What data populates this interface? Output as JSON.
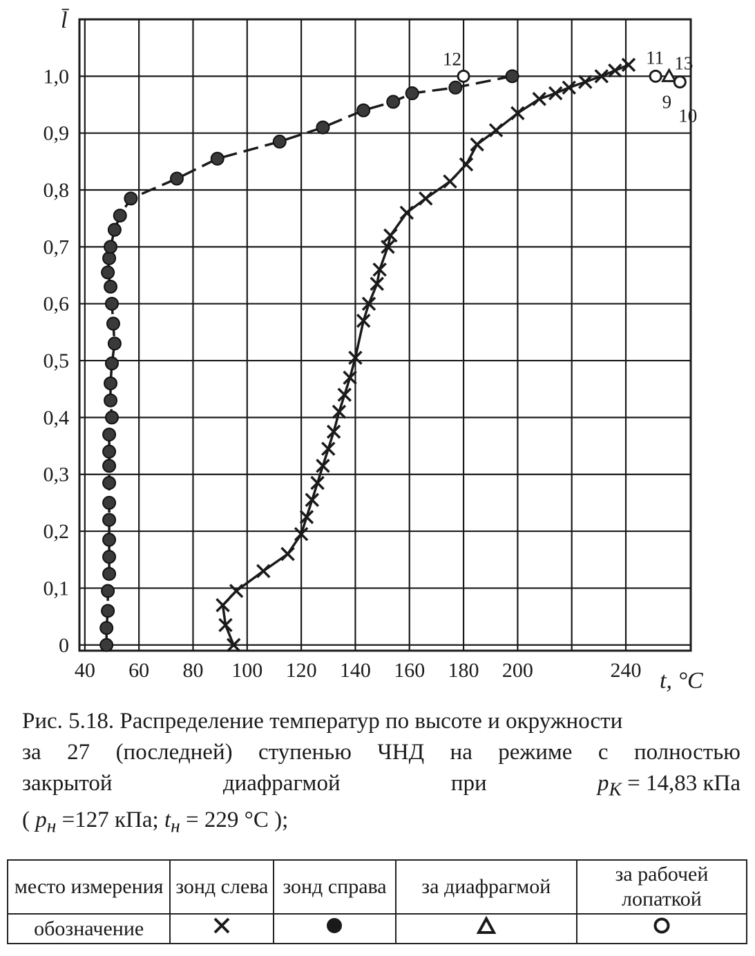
{
  "chart_data": {
    "type": "scatter",
    "xlabel": "t, °C",
    "ylabel": "l̄",
    "xlim": [
      38,
      264
    ],
    "ylim": [
      -0.01,
      1.1
    ],
    "x_ticks": [
      40,
      60,
      80,
      100,
      120,
      140,
      160,
      180,
      200,
      240
    ],
    "x_tick_labels": [
      "40",
      "60",
      "80",
      "100",
      "120",
      "140",
      "160",
      "180",
      "200",
      "240"
    ],
    "y_ticks": [
      0,
      0.1,
      0.2,
      0.3,
      0.4,
      0.5,
      0.6,
      0.7,
      0.8,
      0.9,
      1.0
    ],
    "y_tick_labels": [
      "0",
      "0,1",
      "0,2",
      "0,3",
      "0,4",
      "0,5",
      "0,6",
      "0,7",
      "0,8",
      "0,9",
      "1,0"
    ],
    "grid": true,
    "series": [
      {
        "name": "зонд слева",
        "marker": "cross",
        "line": "solid",
        "points": [
          [
            95,
            0.0
          ],
          [
            92,
            0.035
          ],
          [
            91,
            0.07
          ],
          [
            96,
            0.095
          ],
          [
            106,
            0.13
          ],
          [
            115,
            0.16
          ],
          [
            120,
            0.195
          ],
          [
            122,
            0.225
          ],
          [
            124,
            0.255
          ],
          [
            126,
            0.285
          ],
          [
            128,
            0.315
          ],
          [
            130,
            0.345
          ],
          [
            132,
            0.375
          ],
          [
            134,
            0.41
          ],
          [
            136,
            0.44
          ],
          [
            138,
            0.47
          ],
          [
            140,
            0.505
          ],
          [
            143,
            0.57
          ],
          [
            145,
            0.6
          ],
          [
            148,
            0.635
          ],
          [
            149,
            0.66
          ],
          [
            152,
            0.7
          ],
          [
            153,
            0.72
          ],
          [
            159,
            0.76
          ],
          [
            166,
            0.785
          ],
          [
            175,
            0.815
          ],
          [
            181,
            0.845
          ],
          [
            185,
            0.88
          ],
          [
            192,
            0.905
          ],
          [
            200,
            0.935
          ],
          [
            208,
            0.96
          ],
          [
            214,
            0.97
          ],
          [
            219,
            0.98
          ],
          [
            225,
            0.99
          ],
          [
            231,
            1.0
          ],
          [
            236,
            1.01
          ],
          [
            241,
            1.02
          ]
        ]
      },
      {
        "name": "зонд справа",
        "marker": "dot",
        "line": "dashed",
        "points": [
          [
            48,
            0.0
          ],
          [
            48,
            0.03
          ],
          [
            48.5,
            0.06
          ],
          [
            48.5,
            0.095
          ],
          [
            49,
            0.125
          ],
          [
            49,
            0.155
          ],
          [
            49,
            0.185
          ],
          [
            49,
            0.22
          ],
          [
            49,
            0.25
          ],
          [
            49,
            0.285
          ],
          [
            49,
            0.315
          ],
          [
            49,
            0.34
          ],
          [
            49,
            0.37
          ],
          [
            50,
            0.4
          ],
          [
            49.5,
            0.43
          ],
          [
            49.5,
            0.46
          ],
          [
            50,
            0.495
          ],
          [
            51,
            0.53
          ],
          [
            50.5,
            0.565
          ],
          [
            50,
            0.6
          ],
          [
            49.5,
            0.63
          ],
          [
            48.5,
            0.655
          ],
          [
            49,
            0.68
          ],
          [
            49.5,
            0.7
          ],
          [
            51,
            0.73
          ],
          [
            53,
            0.755
          ],
          [
            57,
            0.785
          ],
          [
            74,
            0.82
          ],
          [
            89,
            0.855
          ],
          [
            112,
            0.885
          ],
          [
            128,
            0.91
          ],
          [
            143,
            0.94
          ],
          [
            154,
            0.955
          ],
          [
            161,
            0.97
          ],
          [
            177,
            0.98
          ],
          [
            198,
            1.0
          ]
        ]
      },
      {
        "name": "за диафрагмой",
        "marker": "triangle",
        "line": "none",
        "points": [
          [
            256,
            1.0
          ]
        ]
      },
      {
        "name": "за рабочей лопаткой",
        "marker": "circle",
        "line": "none",
        "points": [
          [
            180,
            1.0
          ],
          [
            251,
            1.0
          ],
          [
            260,
            0.99
          ]
        ]
      }
    ],
    "annotations": [
      {
        "text": "12",
        "x": 180,
        "y": 1.0
      },
      {
        "text": "11",
        "x": 251,
        "y": 1.0
      },
      {
        "text": "13",
        "x": 260,
        "y": 0.99
      },
      {
        "text": "9",
        "x": 256,
        "y": 1.0
      },
      {
        "text": "10",
        "x": 261,
        "y": 0.99
      }
    ]
  },
  "caption": {
    "line1": "Рис. 5.18. Распределение температур по высоте и окружности",
    "line2_parts": [
      "за",
      "27",
      "(последней)",
      "ступенью",
      "ЧНД",
      "на",
      "режиме",
      "с",
      "полностью"
    ],
    "line3_parts": [
      "закрытой",
      "диафрагмой",
      "при"
    ],
    "pk_label": "p",
    "pk_sub": "K",
    "pk_value": "= 14,83 кПа",
    "line4_open": "( ",
    "pn_label": "p",
    "pn_sub": "н",
    "pn_value": " =127 кПа;  ",
    "tn_label": "t",
    "tn_sub": "н",
    "tn_value": " = 229 °C );"
  },
  "legend_table": {
    "header_col": "место измерения",
    "row_label": "обозначение",
    "columns": [
      "зонд слева",
      "зонд справа",
      "за диафрагмой",
      "за рабочей лопаткой"
    ],
    "symbols": [
      "cross-icon",
      "filled-circle-icon",
      "triangle-icon",
      "circle-icon"
    ]
  }
}
